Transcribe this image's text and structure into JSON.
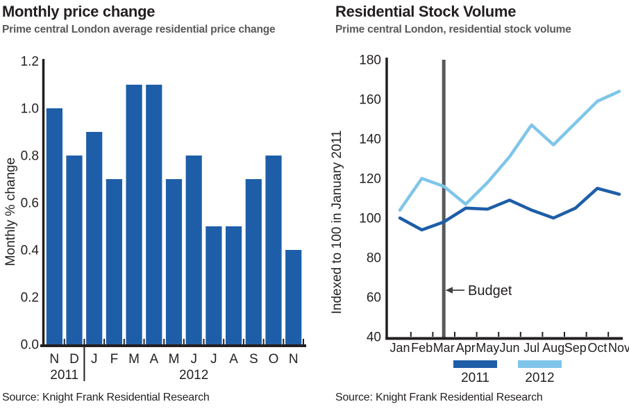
{
  "chart_data": [
    {
      "type": "bar",
      "title": "Monthly price change",
      "subtitle": "Prime central London average residential price change",
      "source": "Source: Knight Frank Residential Research",
      "categories": [
        "N",
        "D",
        "J",
        "F",
        "M",
        "A",
        "M",
        "J",
        "J",
        "A",
        "S",
        "O",
        "N"
      ],
      "values": [
        1.0,
        0.8,
        0.9,
        0.7,
        1.1,
        1.1,
        0.7,
        0.8,
        0.5,
        0.5,
        0.7,
        0.8,
        0.4
      ],
      "year_groups": [
        {
          "label": "2011",
          "start": 0,
          "end": 1
        },
        {
          "label": "2012",
          "start": 2,
          "end": 12
        }
      ],
      "xlabel": "",
      "ylabel": "Monthly % change",
      "ylim": [
        0,
        1.2
      ],
      "ytick_step": 0.2,
      "bar_color": "#1e5ea8",
      "grid": false,
      "legend_position": "none"
    },
    {
      "type": "line",
      "title": "Residential Stock Volume",
      "subtitle": "Prime central London, residential stock volume",
      "source": "Source: Knight Frank Residential Research",
      "x": [
        "Jan",
        "Feb",
        "Mar",
        "Apr",
        "May",
        "Jun",
        "Jul",
        "Aug",
        "Sep",
        "Oct",
        "Nov"
      ],
      "series": [
        {
          "name": "2011",
          "color": "#1e5ea8",
          "values": [
            100,
            94,
            98,
            105,
            104.5,
            109,
            104,
            100,
            105,
            115,
            112
          ]
        },
        {
          "name": "2012",
          "color": "#7fc5e9",
          "values": [
            104,
            120,
            116,
            107,
            118,
            131,
            147,
            137,
            148,
            159,
            164
          ]
        }
      ],
      "xlabel": "",
      "ylabel": "Indexed to 100 in January 2011",
      "ylim": [
        40,
        180
      ],
      "ytick_step": 20,
      "annotation": {
        "label": "Budget",
        "x": "Mar",
        "line_color": "#58595b",
        "text_color": "#77787b",
        "arrow_color": "#3f4041"
      },
      "grid": false,
      "legend_position": "bottom",
      "legend_entries": [
        "2011",
        "2012"
      ]
    }
  ]
}
